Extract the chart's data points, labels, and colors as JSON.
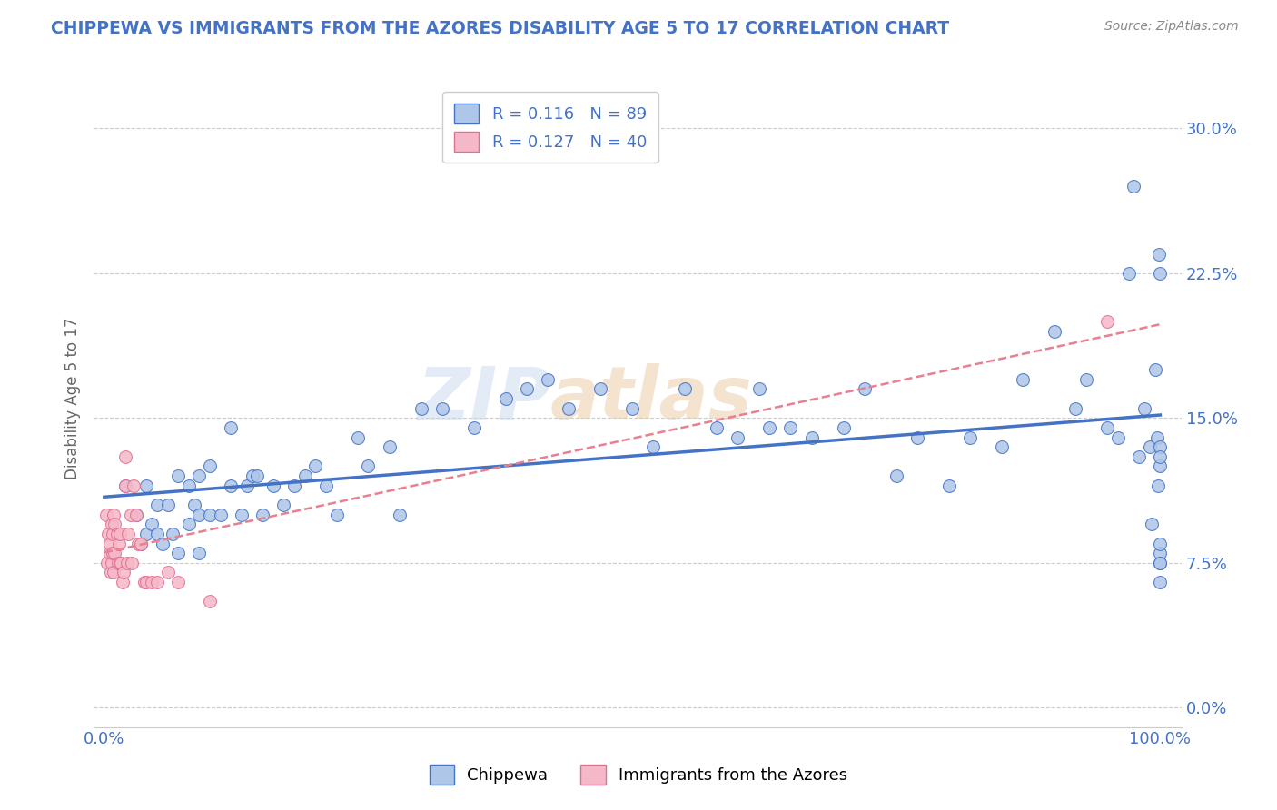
{
  "title": "CHIPPEWA VS IMMIGRANTS FROM THE AZORES DISABILITY AGE 5 TO 17 CORRELATION CHART",
  "source": "Source: ZipAtlas.com",
  "ylabel": "Disability Age 5 to 17",
  "watermark_zip": "ZIP",
  "watermark_atlas": "atlas",
  "chippewa_color": "#aec6e8",
  "chippewa_edge": "#4472c4",
  "azores_color": "#f5b8c8",
  "azores_edge": "#e07090",
  "chippewa_line_color": "#4472c4",
  "azores_line_color": "#e88090",
  "title_color": "#4472c4",
  "axis_label_color": "#666666",
  "tick_color": "#4472c4",
  "grid_color": "#cccccc",
  "xlim": [
    -0.01,
    1.02
  ],
  "ylim": [
    -0.01,
    0.33
  ],
  "yticks": [
    0.0,
    0.075,
    0.15,
    0.225,
    0.3
  ],
  "ytick_labels": [
    "0.0%",
    "7.5%",
    "15.0%",
    "22.5%",
    "30.0%"
  ],
  "xticks": [
    0.0,
    0.25,
    0.5,
    0.75,
    1.0
  ],
  "xtick_labels": [
    "0.0%",
    "",
    "",
    "",
    "100.0%"
  ],
  "chippewa_x": [
    0.02,
    0.03,
    0.035,
    0.04,
    0.04,
    0.045,
    0.05,
    0.05,
    0.055,
    0.06,
    0.065,
    0.07,
    0.07,
    0.08,
    0.08,
    0.085,
    0.09,
    0.09,
    0.09,
    0.1,
    0.1,
    0.11,
    0.12,
    0.12,
    0.13,
    0.135,
    0.14,
    0.145,
    0.15,
    0.16,
    0.17,
    0.18,
    0.19,
    0.2,
    0.21,
    0.22,
    0.24,
    0.25,
    0.27,
    0.28,
    0.3,
    0.32,
    0.35,
    0.38,
    0.4,
    0.42,
    0.44,
    0.47,
    0.5,
    0.52,
    0.55,
    0.58,
    0.6,
    0.62,
    0.63,
    0.65,
    0.67,
    0.7,
    0.72,
    0.75,
    0.77,
    0.8,
    0.82,
    0.85,
    0.87,
    0.9,
    0.92,
    0.93,
    0.95,
    0.96,
    0.97,
    0.975,
    0.98,
    0.985,
    0.99,
    0.992,
    0.995,
    0.997,
    0.998,
    0.999,
    1.0,
    1.0,
    1.0,
    1.0,
    1.0,
    1.0,
    1.0,
    1.0,
    1.0
  ],
  "chippewa_y": [
    0.115,
    0.1,
    0.085,
    0.09,
    0.115,
    0.095,
    0.09,
    0.105,
    0.085,
    0.105,
    0.09,
    0.08,
    0.12,
    0.095,
    0.115,
    0.105,
    0.08,
    0.1,
    0.12,
    0.1,
    0.125,
    0.1,
    0.115,
    0.145,
    0.1,
    0.115,
    0.12,
    0.12,
    0.1,
    0.115,
    0.105,
    0.115,
    0.12,
    0.125,
    0.115,
    0.1,
    0.14,
    0.125,
    0.135,
    0.1,
    0.155,
    0.155,
    0.145,
    0.16,
    0.165,
    0.17,
    0.155,
    0.165,
    0.155,
    0.135,
    0.165,
    0.145,
    0.14,
    0.165,
    0.145,
    0.145,
    0.14,
    0.145,
    0.165,
    0.12,
    0.14,
    0.115,
    0.14,
    0.135,
    0.17,
    0.195,
    0.155,
    0.17,
    0.145,
    0.14,
    0.225,
    0.27,
    0.13,
    0.155,
    0.135,
    0.095,
    0.175,
    0.14,
    0.115,
    0.235,
    0.08,
    0.075,
    0.135,
    0.075,
    0.065,
    0.125,
    0.085,
    0.225,
    0.13
  ],
  "azores_x": [
    0.002,
    0.003,
    0.004,
    0.005,
    0.005,
    0.006,
    0.007,
    0.007,
    0.008,
    0.008,
    0.009,
    0.009,
    0.01,
    0.01,
    0.012,
    0.013,
    0.014,
    0.015,
    0.015,
    0.016,
    0.017,
    0.018,
    0.02,
    0.02,
    0.022,
    0.023,
    0.025,
    0.026,
    0.028,
    0.03,
    0.032,
    0.035,
    0.038,
    0.04,
    0.045,
    0.05,
    0.06,
    0.07,
    0.1,
    0.95
  ],
  "azores_y": [
    0.1,
    0.075,
    0.09,
    0.08,
    0.085,
    0.07,
    0.095,
    0.075,
    0.09,
    0.08,
    0.1,
    0.07,
    0.08,
    0.095,
    0.09,
    0.075,
    0.085,
    0.09,
    0.075,
    0.075,
    0.065,
    0.07,
    0.13,
    0.115,
    0.075,
    0.09,
    0.1,
    0.075,
    0.115,
    0.1,
    0.085,
    0.085,
    0.065,
    0.065,
    0.065,
    0.065,
    0.07,
    0.065,
    0.055,
    0.2
  ]
}
